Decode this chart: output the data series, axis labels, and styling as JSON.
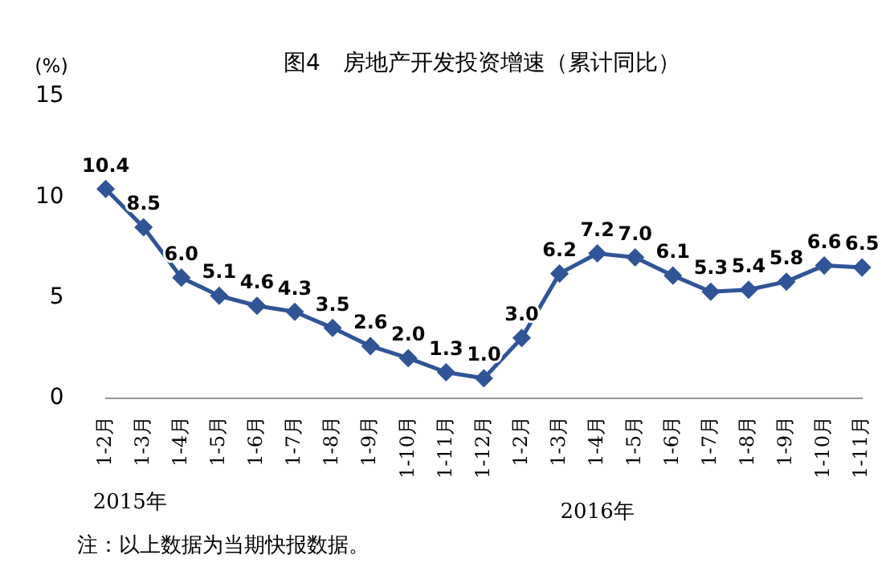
{
  "chart_data": {
    "type": "line",
    "title": "图4　房地产开发投资增速（累计同比）",
    "ylabel": "(%)",
    "categories": [
      "1-2月",
      "1-3月",
      "1-4月",
      "1-5月",
      "1-6月",
      "1-7月",
      "1-8月",
      "1-9月",
      "1-10月",
      "1-11月",
      "1-12月",
      "1-2月",
      "1-3月",
      "1-4月",
      "1-5月",
      "1-6月",
      "1-7月",
      "1-8月",
      "1-9月",
      "1-10月",
      "1-11月"
    ],
    "series": [
      {
        "color": "#2f5597",
        "values": [
          10.4,
          8.5,
          6.0,
          5.1,
          4.6,
          4.3,
          3.5,
          2.6,
          2.0,
          1.3,
          1.0,
          3.0,
          6.2,
          7.2,
          7.0,
          6.1,
          5.3,
          5.4,
          5.8,
          6.6,
          6.5
        ]
      }
    ],
    "ylim": [
      0,
      15
    ],
    "yticks": [
      0,
      5,
      10,
      15
    ],
    "grid": false,
    "legend": false,
    "marker": "diamond",
    "line_style": "solid",
    "value_labels": [
      "10.4",
      "8.5",
      "6.0",
      "5.1",
      "4.6",
      "4.3",
      "3.5",
      "2.6",
      "2.0",
      "1.3",
      "1.0",
      "3.0",
      "6.2",
      "7.2",
      "7.0",
      "6.1",
      "5.3",
      "5.4",
      "5.8",
      "6.6",
      "6.5"
    ],
    "annotations": [
      "2015年",
      "2016年",
      "注：以上数据为当期快报数据。"
    ]
  }
}
